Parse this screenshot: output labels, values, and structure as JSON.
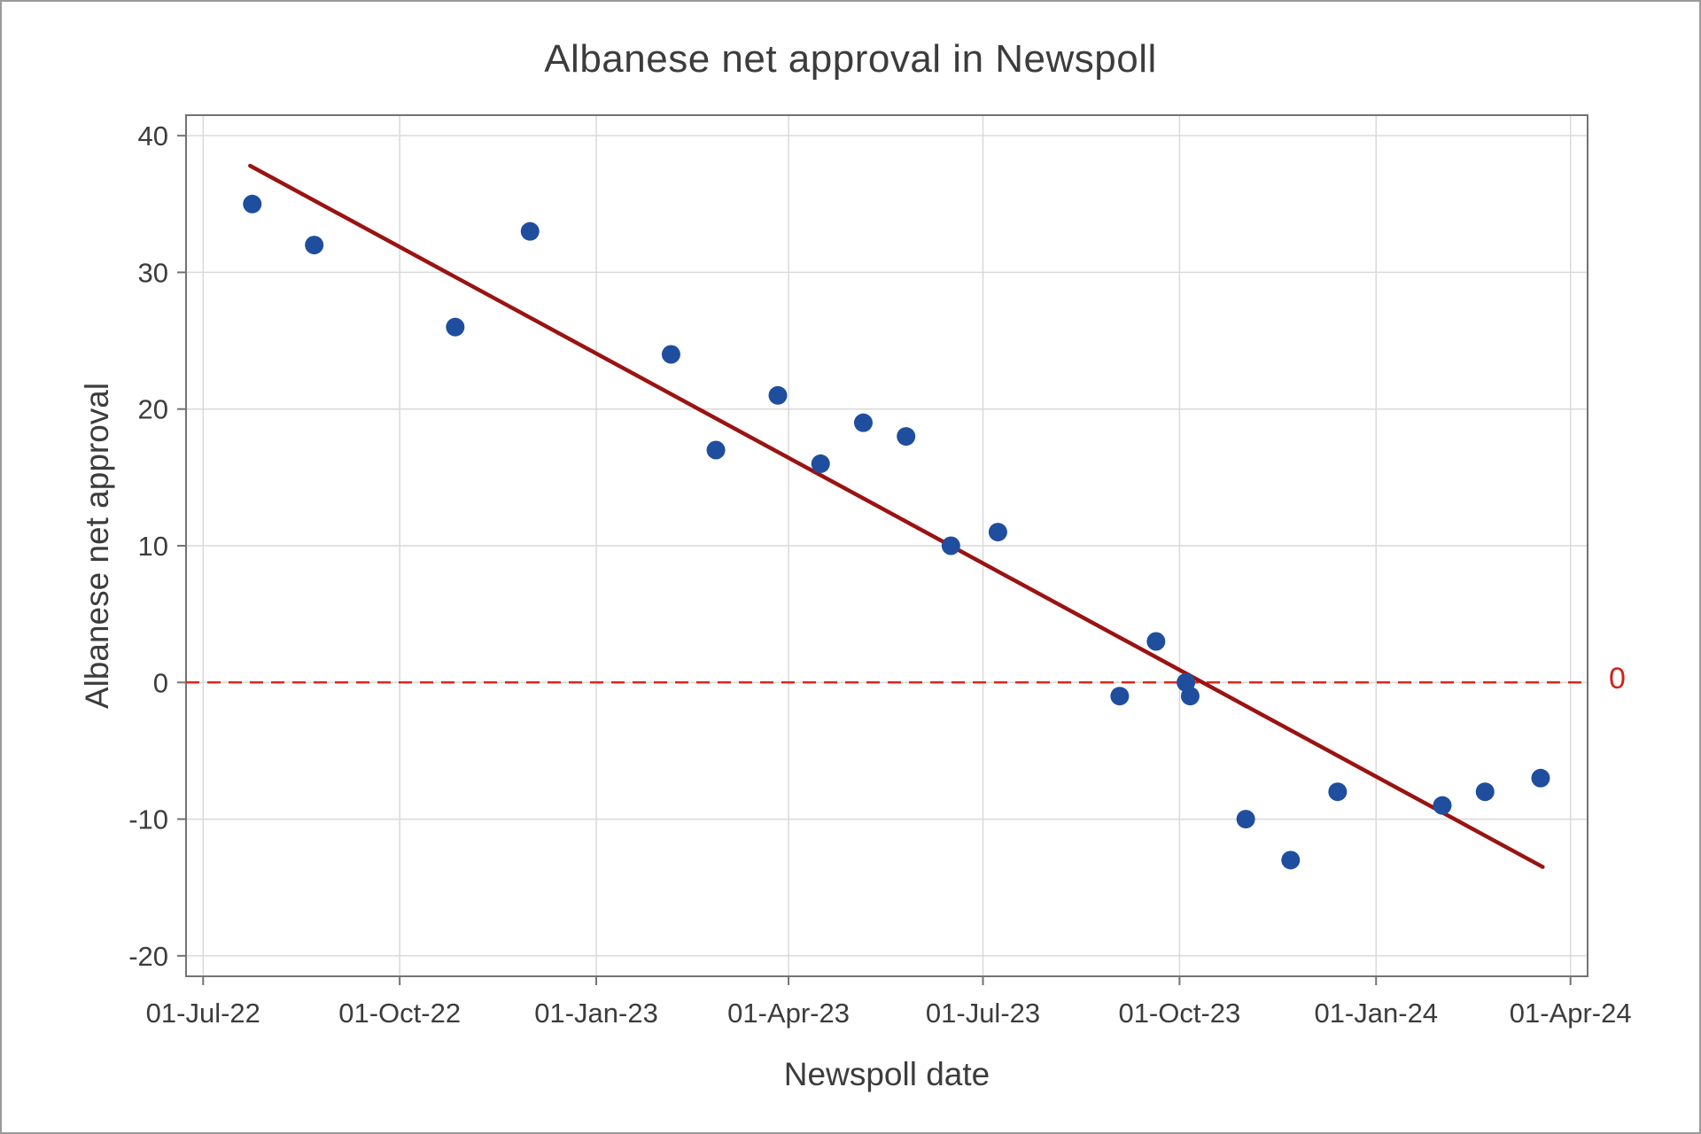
{
  "chart_data": {
    "type": "scatter",
    "title": "Albanese net approval in Newspoll",
    "xlabel": "Newspoll date",
    "ylabel": "Albanese net approval",
    "grid": true,
    "x_domain": [
      "2022-06-23",
      "2024-04-09"
    ],
    "y_domain": [
      -21.5,
      41.5
    ],
    "x_ticks": [
      {
        "date": "2022-07-01",
        "label": "01-Jul-22"
      },
      {
        "date": "2022-10-01",
        "label": "01-Oct-22"
      },
      {
        "date": "2023-01-01",
        "label": "01-Jan-23"
      },
      {
        "date": "2023-04-01",
        "label": "01-Apr-23"
      },
      {
        "date": "2023-07-01",
        "label": "01-Jul-23"
      },
      {
        "date": "2023-10-01",
        "label": "01-Oct-23"
      },
      {
        "date": "2024-01-01",
        "label": "01-Jan-24"
      },
      {
        "date": "2024-04-01",
        "label": "01-Apr-24"
      }
    ],
    "y_ticks": [
      40,
      30,
      20,
      10,
      0,
      -10,
      -20
    ],
    "points": [
      {
        "date": "2022-07-24",
        "value": 35
      },
      {
        "date": "2022-08-22",
        "value": 32
      },
      {
        "date": "2022-10-27",
        "value": 26
      },
      {
        "date": "2022-12-01",
        "value": 33
      },
      {
        "date": "2023-02-05",
        "value": 24
      },
      {
        "date": "2023-02-26",
        "value": 17
      },
      {
        "date": "2023-03-27",
        "value": 21
      },
      {
        "date": "2023-04-16",
        "value": 16
      },
      {
        "date": "2023-05-06",
        "value": 19
      },
      {
        "date": "2023-05-26",
        "value": 18
      },
      {
        "date": "2023-06-16",
        "value": 10
      },
      {
        "date": "2023-07-08",
        "value": 11
      },
      {
        "date": "2023-09-03",
        "value": -1
      },
      {
        "date": "2023-09-20",
        "value": 3
      },
      {
        "date": "2023-10-04",
        "value": 0
      },
      {
        "date": "2023-10-06",
        "value": -1
      },
      {
        "date": "2023-11-01",
        "value": -10
      },
      {
        "date": "2023-11-22",
        "value": -13
      },
      {
        "date": "2023-12-14",
        "value": -8
      },
      {
        "date": "2024-02-01",
        "value": -9
      },
      {
        "date": "2024-02-21",
        "value": -8
      },
      {
        "date": "2024-03-18",
        "value": -7
      }
    ],
    "trendline": {
      "start": {
        "date": "2022-07-23",
        "value": 37.8
      },
      "end": {
        "date": "2024-03-19",
        "value": -13.5
      },
      "color": "#9a1313"
    },
    "zero_line": {
      "value": 0,
      "label": "0",
      "color": "#e0261b"
    },
    "colors": {
      "point": "#1f4e9f",
      "grid": "#d9d9d9",
      "frame": "#737373",
      "text": "#3c3c3c"
    }
  }
}
